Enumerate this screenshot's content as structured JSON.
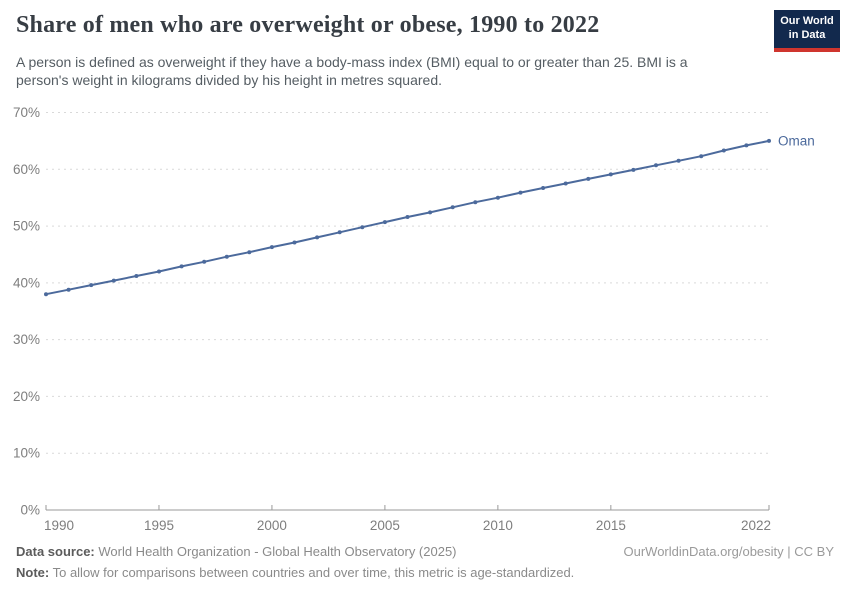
{
  "header": {
    "title": "Share of men who are overweight or obese, 1990 to 2022",
    "subtitle": "A person is defined as overweight if they have a body-mass index (BMI) equal to or greater than 25. BMI is a person's weight in kilograms divided by his height in metres squared.",
    "logo": {
      "line1": "Our World",
      "line2": "in Data"
    }
  },
  "chart_data": {
    "type": "line",
    "title": "Share of men who are overweight or obese, 1990 to 2022",
    "xlabel": "",
    "ylabel": "",
    "xlim": [
      1990,
      2022
    ],
    "ylim": [
      0,
      70
    ],
    "x_ticks": [
      1990,
      1995,
      2000,
      2005,
      2010,
      2015,
      2022
    ],
    "y_ticks": [
      0,
      10,
      20,
      30,
      40,
      50,
      60,
      70
    ],
    "y_tick_suffix": "%",
    "grid": "horizontal-dashed",
    "legend_position": "end-of-line-label",
    "series": [
      {
        "name": "Oman",
        "color": "#4c6a9c",
        "x": [
          1990,
          1991,
          1992,
          1993,
          1994,
          1995,
          1996,
          1997,
          1998,
          1999,
          2000,
          2001,
          2002,
          2003,
          2004,
          2005,
          2006,
          2007,
          2008,
          2009,
          2010,
          2011,
          2012,
          2013,
          2014,
          2015,
          2016,
          2017,
          2018,
          2019,
          2020,
          2021,
          2022
        ],
        "values": [
          38.0,
          38.8,
          39.6,
          40.4,
          41.2,
          42.0,
          42.9,
          43.7,
          44.6,
          45.4,
          46.3,
          47.1,
          48.0,
          48.9,
          49.8,
          50.7,
          51.6,
          52.4,
          53.3,
          54.2,
          55.0,
          55.9,
          56.7,
          57.5,
          58.3,
          59.1,
          59.9,
          60.7,
          61.5,
          62.3,
          63.3,
          64.2,
          65.0
        ]
      }
    ]
  },
  "footer": {
    "data_source_label": "Data source:",
    "data_source_text": " World Health Organization - Global Health Observatory (2025)",
    "note_label": "Note:",
    "note_text": " To allow for comparisons between countries and over time, this metric is age-standardized.",
    "link": "OurWorldinData.org/obesity | CC BY"
  },
  "colors": {
    "accent_line": "#4c6a9c",
    "grid": "#d9d9d9",
    "axis": "#9a9a9a",
    "tick_text": "#7e7e7e",
    "logo_bg": "#12294d",
    "logo_red": "#cf352e"
  }
}
